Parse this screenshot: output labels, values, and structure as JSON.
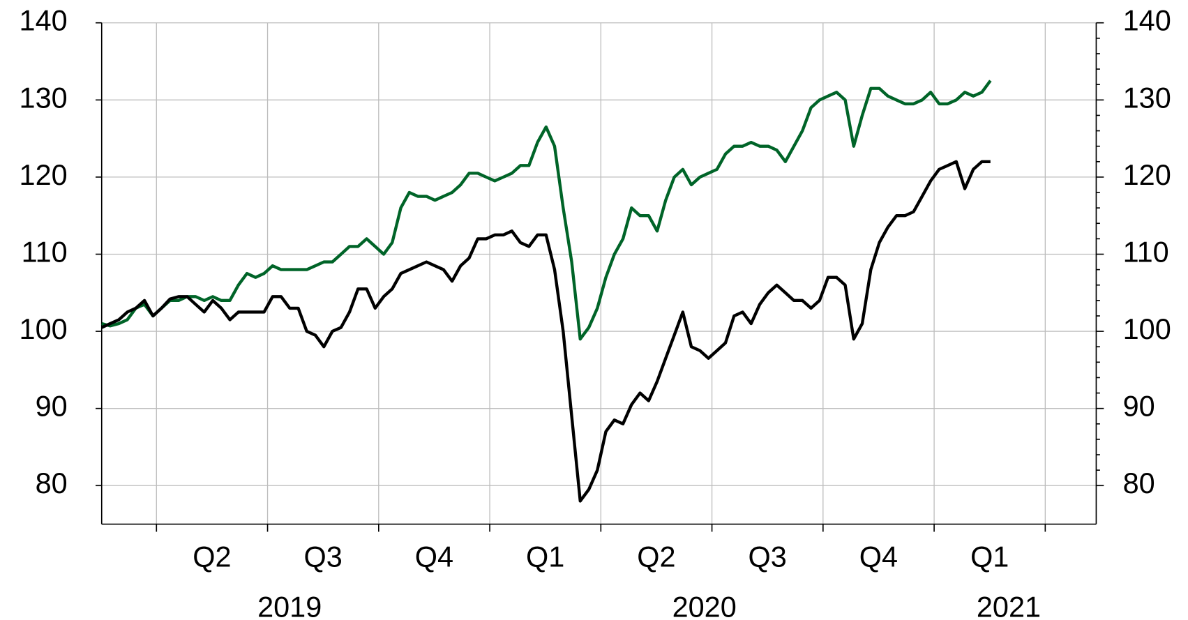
{
  "chart_data": {
    "type": "line",
    "categories": [
      null,
      null,
      null,
      null,
      null,
      null,
      null,
      null,
      null,
      null,
      null,
      null,
      null,
      null,
      null,
      null,
      null,
      null,
      null,
      null,
      null,
      null,
      null,
      null,
      null,
      null,
      null,
      null,
      null,
      null,
      null,
      null,
      null,
      null,
      null,
      null,
      null,
      null,
      null,
      null,
      null,
      null,
      null,
      null,
      null,
      null,
      null,
      null,
      null,
      null,
      null,
      null,
      null,
      null,
      null,
      null,
      null,
      null,
      null,
      null,
      null,
      null,
      null,
      null,
      null,
      null,
      null,
      null,
      null,
      null,
      null,
      null,
      null,
      null,
      null,
      null,
      null,
      null,
      null,
      null,
      null,
      null,
      null,
      null,
      null,
      null,
      null,
      null,
      null,
      null,
      null,
      null,
      null,
      null,
      null,
      null,
      null,
      null,
      null,
      null,
      null,
      null,
      null,
      null,
      null
    ],
    "x_quarter_labels": [
      "Q2",
      "Q3",
      "Q4",
      "Q1",
      "Q2",
      "Q3",
      "Q4",
      "Q1"
    ],
    "x_year_labels": [
      "2019",
      "2020",
      "2021"
    ],
    "series": [
      {
        "color": "#006428",
        "values": [
          101,
          100.7,
          101,
          101.5,
          103,
          103.5,
          102,
          103,
          104,
          104,
          104.5,
          104.5,
          104,
          104.5,
          104,
          104,
          106,
          107.5,
          107,
          107.5,
          108.5,
          108,
          108,
          108,
          108,
          108.5,
          109,
          109,
          110,
          111,
          111,
          112,
          111,
          110,
          111.5,
          116,
          118,
          117.5,
          117.5,
          117,
          117.5,
          118,
          119,
          120.5,
          120.5,
          120,
          119.5,
          120,
          120.5,
          121.5,
          121.5,
          124.5,
          126.5,
          124,
          116,
          109,
          99,
          100.5,
          103,
          107,
          110,
          112,
          116,
          115,
          115,
          113,
          117,
          120,
          121,
          119,
          120,
          120.5,
          121,
          123,
          124,
          124,
          124.5,
          124,
          124,
          123.5,
          122,
          124,
          126,
          129,
          130,
          130.5,
          131,
          130,
          124,
          128,
          131.5,
          131.5,
          130.5,
          130,
          129.5,
          129.5,
          130,
          131,
          129.5,
          129.5,
          130,
          131,
          130.5,
          131,
          132.5
        ]
      },
      {
        "color": "#000000",
        "values": [
          100.5,
          101,
          101.5,
          102.5,
          103,
          104,
          102,
          103,
          104.2,
          104.5,
          104.5,
          103.5,
          102.5,
          104,
          103,
          101.5,
          102.5,
          102.5,
          102.5,
          102.5,
          104.5,
          104.5,
          103,
          103,
          100,
          99.5,
          98,
          100,
          100.5,
          102.5,
          105.5,
          105.5,
          103,
          104.5,
          105.5,
          107.5,
          108,
          108.5,
          109,
          108.5,
          108,
          106.5,
          108.5,
          109.5,
          112,
          112,
          112.5,
          112.5,
          113,
          111.5,
          111,
          112.5,
          112.5,
          108,
          100,
          89,
          78,
          79.5,
          82,
          87,
          88.5,
          88,
          90.5,
          92,
          91,
          93.5,
          96.5,
          99.5,
          102.5,
          98,
          97.5,
          96.5,
          97.5,
          98.5,
          102,
          102.5,
          101,
          103.5,
          105,
          106,
          105,
          104,
          104,
          103,
          104,
          107,
          107,
          106,
          99,
          101,
          108,
          111.5,
          113.5,
          115,
          115,
          115.5,
          117.5,
          119.5,
          121,
          121.5,
          122,
          118.5,
          121,
          122,
          122
        ]
      }
    ],
    "ylim": [
      75,
      140
    ],
    "yticks": [
      80,
      90,
      100,
      110,
      120,
      130,
      140
    ],
    "y2lim": [
      75,
      140
    ],
    "y2ticks": [
      80,
      90,
      100,
      110,
      120,
      130,
      140
    ],
    "grid": true
  }
}
